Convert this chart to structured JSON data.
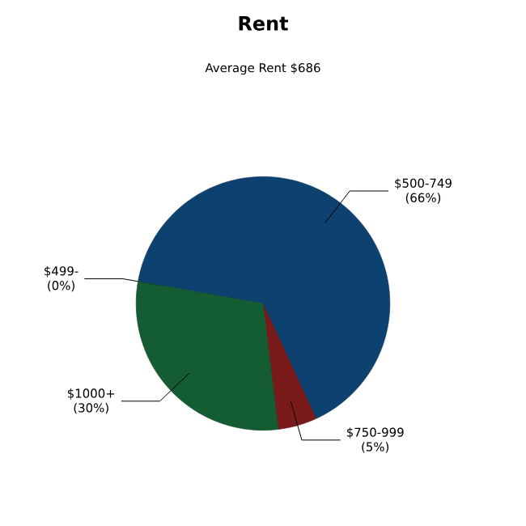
{
  "chart_data": {
    "type": "pie",
    "title": "Rent",
    "subtitle": "Average Rent  $686",
    "categories": [
      "$499-",
      "$500-749",
      "$750-999",
      "$1000+"
    ],
    "values": [
      0,
      66,
      5,
      30
    ],
    "value_labels": [
      "(0%)",
      "(66%)",
      "(5%)",
      "(30%)"
    ],
    "colors": [
      "#7f7f7f",
      "#0d4170",
      "#7a1a1a",
      "#145c32"
    ]
  }
}
